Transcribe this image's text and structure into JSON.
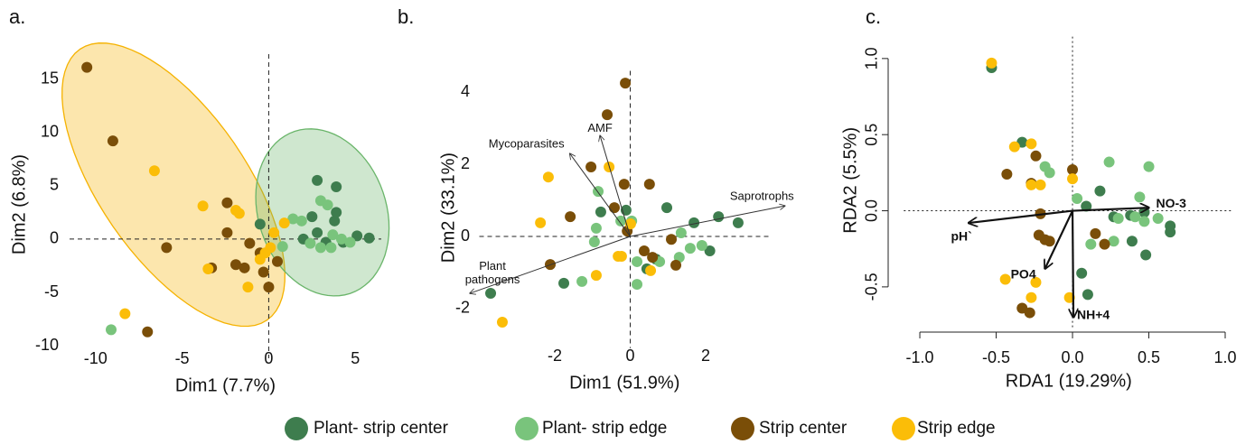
{
  "chart_data": [
    {
      "type": "scatter",
      "label": "a.",
      "xlabel": "Dim1 (7.7%)",
      "ylabel": "Dim2 (6.8%)",
      "xlim": [
        -11.5,
        6.5
      ],
      "ylim": [
        -10.5,
        17
      ],
      "xticks": [
        -10,
        -5,
        0,
        5
      ],
      "yticks": [
        -10,
        -5,
        0,
        5,
        10,
        15
      ],
      "zero_lines": true,
      "ellipses": [
        {
          "color": "#f5b200",
          "center": [
            -5.5,
            5.1
          ],
          "axes": [
            [
              -5.4,
              12.7
            ],
            [
              3.5,
              3.9
            ]
          ]
        },
        {
          "color": "#6ab56a",
          "center": [
            3.1,
            2.5
          ],
          "axes": [
            [
              -1.6,
              7.6
            ],
            [
              3.5,
              1.9
            ]
          ]
        }
      ],
      "series": [
        {
          "name": "Plant- strip center",
          "color": "#3e7d4e",
          "x": [
            -0.5,
            2.8,
            3.9,
            2.5,
            3.9,
            2.8,
            3.3,
            4.3,
            5.1,
            5.8,
            2.0,
            3.8
          ],
          "y": [
            1.4,
            5.5,
            4.9,
            2.1,
            2.5,
            0.6,
            -0.3,
            -0.3,
            0.3,
            0.1,
            0,
            1.7
          ]
        },
        {
          "name": "Plant- strip edge",
          "color": "#79c47c",
          "x": [
            -9.1,
            1.4,
            3,
            3.4,
            3.7,
            4.2,
            4.7,
            2.4,
            3,
            3.6,
            0.8,
            1.9
          ],
          "y": [
            -8.5,
            1.9,
            3.6,
            3.2,
            0.4,
            0,
            -0.3,
            -0.4,
            -0.8,
            -0.8,
            -0.7,
            1.7
          ]
        },
        {
          "name": "Strip center",
          "color": "#7a4e08",
          "x": [
            -10.5,
            -9,
            -5.9,
            -7,
            -2.4,
            -2.4,
            -3.3,
            -1.9,
            -1.4,
            -1.1,
            -0.5,
            0,
            0.5,
            -0.3
          ],
          "y": [
            16.1,
            9.2,
            -0.8,
            -8.7,
            3.4,
            0.6,
            -2.7,
            -2.4,
            -2.7,
            -0.4,
            -1.3,
            -4.5,
            -2.1,
            -3.1
          ]
        },
        {
          "name": "Strip edge",
          "color": "#fbbd08",
          "x": [
            -6.6,
            -3.8,
            -1.9,
            -1.7,
            -3.5,
            -1.2,
            -0.5,
            -0.2,
            0.1,
            0.3,
            0.9,
            -8.3
          ],
          "y": [
            6.4,
            3.1,
            2.7,
            2.4,
            -2.8,
            -4.5,
            -1.9,
            -1.3,
            -0.8,
            0.6,
            1.5,
            -7.0
          ]
        }
      ]
    },
    {
      "type": "biplot",
      "label": "b.",
      "xlabel": "Dim1 (51.9%)",
      "ylabel": "Dim2 (33.1%)",
      "xlim": [
        -4,
        3.7
      ],
      "ylim": [
        -2.9,
        4.5
      ],
      "xticks": [
        -2,
        0,
        2
      ],
      "yticks": [
        -2,
        0,
        2,
        4
      ],
      "zero_lines": true,
      "arrows": [
        {
          "label": "Saprotrophs",
          "x": 4.1,
          "y": 0.85
        },
        {
          "label": "Mycoparasites",
          "x": -1.6,
          "y": 2.3
        },
        {
          "label": "AMF",
          "x": -0.8,
          "y": 2.8
        },
        {
          "label": "Plant pathogens",
          "x": -4.25,
          "y": -1.58
        }
      ],
      "series": [
        {
          "name": "Plant- strip center",
          "color": "#3e7d4e",
          "x": [
            -3.7,
            -0.11,
            0.97,
            1.69,
            2.34,
            2.86,
            0.68,
            0.44,
            2.11,
            -1.76,
            -0.78
          ],
          "y": [
            -1.58,
            0.73,
            0.8,
            0.38,
            0.55,
            0.38,
            -0.63,
            -0.9,
            -0.4,
            -1.3,
            0.68
          ]
        },
        {
          "name": "Plant- strip edge",
          "color": "#79c47c",
          "x": [
            -0.85,
            0.04,
            -0.9,
            -0.95,
            0.18,
            -1.28,
            1.35,
            1.59,
            1.9,
            1.3,
            0.18,
            0.78,
            -0.25
          ],
          "y": [
            1.25,
            0.43,
            0.23,
            -0.15,
            -1.33,
            -1.25,
            0.1,
            -0.33,
            -0.25,
            -0.58,
            -0.7,
            -0.7,
            0.43
          ]
        },
        {
          "name": "Strip center",
          "color": "#7a4e08",
          "x": [
            -0.13,
            -0.61,
            -1.04,
            -1.59,
            -2.12,
            -0.16,
            0.51,
            -0.08,
            0.37,
            1.09,
            1.21,
            0.59,
            -0.42
          ],
          "y": [
            4.26,
            3.38,
            1.93,
            0.55,
            -0.78,
            1.45,
            1.45,
            0.15,
            -0.4,
            -0.08,
            -0.8,
            -0.58,
            0.8
          ]
        },
        {
          "name": "Strip edge",
          "color": "#fbbd08",
          "x": [
            -0.56,
            -2.17,
            -2.38,
            -3.39,
            -0.32,
            -0.23,
            0.01,
            0.54,
            -0.9
          ],
          "y": [
            1.93,
            1.65,
            0.38,
            -2.38,
            -0.55,
            -0.55,
            0.35,
            -0.95,
            -1.08
          ]
        }
      ]
    },
    {
      "type": "biplot",
      "label": "c.",
      "xlabel": "RDA1 (19.29%)",
      "ylabel": "RDA2 (5.5%)",
      "xlim": [
        -1.105,
        1.055
      ],
      "ylim": [
        -0.72,
        1.12
      ],
      "xticks": [
        {
          "value": -1,
          "label": "-1.0"
        },
        {
          "value": -0.5,
          "label": "-0.5"
        },
        {
          "value": 0,
          "label": "0.0"
        },
        {
          "value": 0.5,
          "label": "0.5"
        },
        {
          "value": 1,
          "label": "1.0"
        }
      ],
      "yticks": [
        {
          "value": -0.5,
          "label": "-0.5"
        },
        {
          "value": 0,
          "label": "0.0"
        },
        {
          "value": 0.5,
          "label": "0.5"
        },
        {
          "value": 1,
          "label": "1.0"
        }
      ],
      "zero_lines": true,
      "arrows": [
        {
          "label": "NO-3",
          "x": 0.5,
          "y": 0.02
        },
        {
          "label": "pH`",
          "x": -0.68,
          "y": -0.08
        },
        {
          "label": "PO4",
          "x": -0.18,
          "y": -0.38
        },
        {
          "label": "NH+4",
          "x": 0.006,
          "y": -0.7
        }
      ],
      "series": [
        {
          "name": "Plant- strip center",
          "color": "#3e7d4e",
          "x": [
            -0.53,
            -0.33,
            0.18,
            0.09,
            0.27,
            0.38,
            0.47,
            0.64,
            0.64,
            0.39,
            0.48,
            0.06,
            0.1
          ],
          "y": [
            0.94,
            0.45,
            0.13,
            0.03,
            -0.04,
            -0.03,
            -0.01,
            -0.1,
            -0.14,
            -0.2,
            -0.29,
            -0.41,
            -0.55
          ]
        },
        {
          "name": "Plant- strip edge",
          "color": "#79c47c",
          "x": [
            -0.18,
            -0.15,
            0.24,
            0.5,
            0.44,
            0.56,
            0.3,
            0.47,
            0.41,
            0.12,
            0.27,
            0.03
          ],
          "y": [
            0.29,
            0.25,
            0.32,
            0.29,
            0.09,
            -0.05,
            -0.05,
            -0.07,
            -0.04,
            -0.22,
            -0.2,
            0.08
          ]
        },
        {
          "name": "Strip center",
          "color": "#7a4e08",
          "x": [
            -0.43,
            -0.27,
            0,
            -0.21,
            -0.22,
            -0.18,
            0.15,
            0.21,
            -0.33,
            -0.28,
            -0.15,
            -0.24
          ],
          "y": [
            0.24,
            0.18,
            0.27,
            -0.02,
            -0.16,
            -0.19,
            -0.15,
            -0.22,
            -0.64,
            -0.67,
            -0.2,
            0.36
          ]
        },
        {
          "name": "Strip edge",
          "color": "#fbbd08",
          "x": [
            -0.53,
            -0.27,
            -0.38,
            -0.21,
            0,
            -0.44,
            -0.27,
            -0.24,
            -0.02,
            -0.27
          ],
          "y": [
            0.97,
            0.44,
            0.42,
            0.17,
            0.21,
            -0.45,
            -0.57,
            -0.47,
            -0.57,
            0.17
          ]
        }
      ]
    }
  ]
}
